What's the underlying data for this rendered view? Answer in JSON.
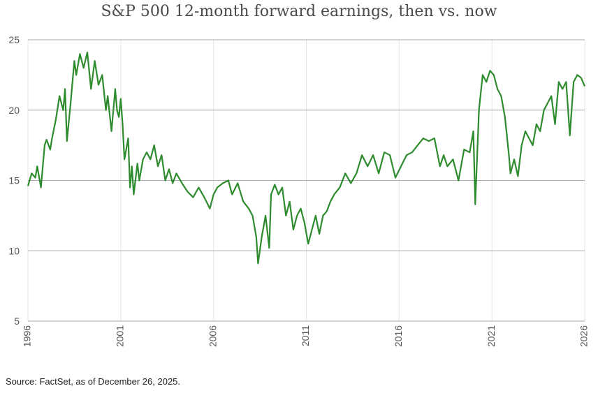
{
  "chart_data": {
    "type": "line",
    "title": "S&P 500 12-month forward earnings, then vs. now",
    "source": "Source: FactSet, as of December 26, 2025.",
    "xlabel": "",
    "ylabel": "",
    "xlim": [
      1996,
      2026
    ],
    "ylim": [
      5,
      25
    ],
    "y_ticks": [
      5,
      10,
      15,
      20,
      25
    ],
    "x_ticks": [
      1996,
      2001,
      2006,
      2011,
      2016,
      2021,
      2026
    ],
    "grid": "horizontal",
    "line_color": "#2e8b2e",
    "series": [
      {
        "x": [
          1996.0,
          1996.2,
          1996.4,
          1996.5,
          1996.7,
          1996.9,
          1997.0,
          1997.2,
          1997.3,
          1997.5,
          1997.7,
          1997.9,
          1998.0,
          1998.1,
          1998.3,
          1998.5,
          1998.6,
          1998.8,
          1999.0,
          1999.2,
          1999.4,
          1999.6,
          1999.8,
          2000.0,
          2000.2,
          2000.3,
          2000.5,
          2000.7,
          2000.8,
          2000.9,
          2001.0,
          2001.1,
          2001.2,
          2001.4,
          2001.5,
          2001.6,
          2001.7,
          2001.9,
          2002.0,
          2002.2,
          2002.4,
          2002.6,
          2002.8,
          2003.0,
          2003.2,
          2003.4,
          2003.6,
          2003.8,
          2004.0,
          2004.3,
          2004.6,
          2004.9,
          2005.2,
          2005.5,
          2005.8,
          2006.0,
          2006.2,
          2006.5,
          2006.8,
          2007.0,
          2007.3,
          2007.6,
          2007.9,
          2008.1,
          2008.3,
          2008.4,
          2008.6,
          2008.8,
          2009.0,
          2009.1,
          2009.3,
          2009.5,
          2009.7,
          2009.9,
          2010.1,
          2010.3,
          2010.5,
          2010.7,
          2010.9,
          2011.1,
          2011.3,
          2011.5,
          2011.7,
          2011.9,
          2012.1,
          2012.3,
          2012.5,
          2012.8,
          2013.1,
          2013.4,
          2013.7,
          2014.0,
          2014.3,
          2014.6,
          2014.9,
          2015.2,
          2015.5,
          2015.8,
          2016.1,
          2016.4,
          2016.7,
          2017.0,
          2017.3,
          2017.6,
          2017.9,
          2018.2,
          2018.4,
          2018.6,
          2018.9,
          2019.2,
          2019.5,
          2019.8,
          2020.0,
          2020.1,
          2020.3,
          2020.5,
          2020.7,
          2020.9,
          2021.1,
          2021.3,
          2021.5,
          2021.7,
          2021.9,
          2022.0,
          2022.2,
          2022.4,
          2022.6,
          2022.8,
          2023.0,
          2023.2,
          2023.4,
          2023.6,
          2023.8,
          2024.0,
          2024.2,
          2024.4,
          2024.6,
          2024.8,
          2025.0,
          2025.2,
          2025.4,
          2025.6,
          2025.8,
          2026.0
        ],
        "values": [
          14.6,
          15.5,
          15.2,
          16.0,
          14.5,
          17.5,
          17.9,
          17.2,
          18.0,
          19.3,
          21.0,
          20.0,
          21.5,
          17.8,
          20.5,
          23.5,
          22.5,
          24.0,
          23.0,
          24.1,
          21.5,
          23.5,
          21.8,
          22.5,
          20.0,
          21.0,
          18.5,
          21.5,
          20.0,
          19.5,
          20.8,
          19.0,
          16.5,
          18.0,
          14.5,
          16.0,
          14.0,
          16.2,
          15.0,
          16.5,
          17.0,
          16.5,
          17.5,
          16.0,
          16.8,
          15.0,
          15.8,
          14.8,
          15.5,
          14.8,
          14.2,
          13.8,
          14.5,
          13.8,
          13.0,
          14.0,
          14.5,
          14.8,
          15.0,
          14.0,
          14.8,
          13.5,
          13.0,
          12.5,
          11.0,
          9.1,
          11.0,
          12.5,
          10.2,
          14.0,
          14.7,
          14.0,
          14.5,
          12.5,
          13.5,
          11.5,
          12.5,
          13.0,
          12.0,
          10.5,
          11.5,
          12.5,
          11.2,
          12.5,
          12.8,
          13.5,
          14.0,
          14.5,
          15.5,
          14.8,
          15.5,
          16.8,
          16.0,
          16.8,
          15.5,
          17.0,
          16.8,
          15.2,
          16.0,
          16.8,
          17.0,
          17.5,
          18.0,
          17.8,
          18.0,
          16.0,
          16.8,
          16.0,
          16.5,
          15.0,
          17.2,
          17.0,
          18.5,
          13.3,
          20.0,
          22.5,
          22.0,
          22.8,
          22.5,
          21.5,
          21.0,
          19.5,
          17.0,
          15.5,
          16.5,
          15.3,
          17.5,
          18.5,
          18.0,
          17.5,
          19.0,
          18.5,
          20.0,
          20.5,
          21.0,
          19.0,
          22.0,
          21.5,
          22.0,
          18.2,
          22.0,
          22.5,
          22.3,
          21.7
        ]
      }
    ]
  }
}
